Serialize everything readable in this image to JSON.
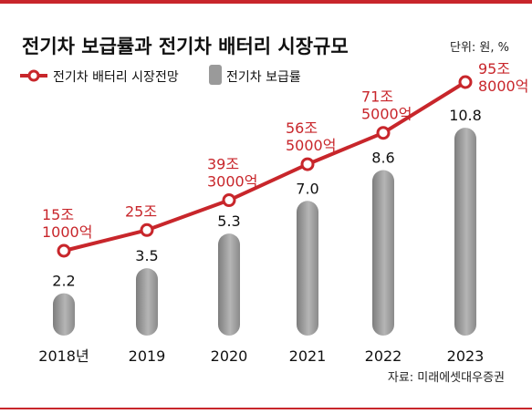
{
  "chart_data": {
    "type": "bar+line",
    "title": "전기차 보급률과 전기차 배터리 시장규모",
    "unit_note": "단위: 원, %",
    "source": "자료: 미래에셋대우증권",
    "categories": [
      "2018년",
      "2019",
      "2020",
      "2021",
      "2022",
      "2023"
    ],
    "series": [
      {
        "name": "전기차 보급률",
        "type": "bar",
        "color": "#9a9a9a",
        "values": [
          2.2,
          3.5,
          5.3,
          7.0,
          8.6,
          10.8
        ],
        "labels": [
          "2.2",
          "3.5",
          "5.3",
          "7.0",
          "8.6",
          "10.8"
        ]
      },
      {
        "name": "전기차 배터리 시장전망",
        "type": "line",
        "color": "#c8262b",
        "values": [
          15.1,
          25,
          39.3,
          56.5,
          71.5,
          95.8
        ],
        "labels": [
          [
            "15조",
            "1000억"
          ],
          [
            "25조"
          ],
          [
            "39조",
            "3000억"
          ],
          [
            "56조",
            "5000억"
          ],
          [
            "71조",
            "5000억"
          ],
          [
            "95조",
            "8000억"
          ]
        ]
      }
    ]
  }
}
